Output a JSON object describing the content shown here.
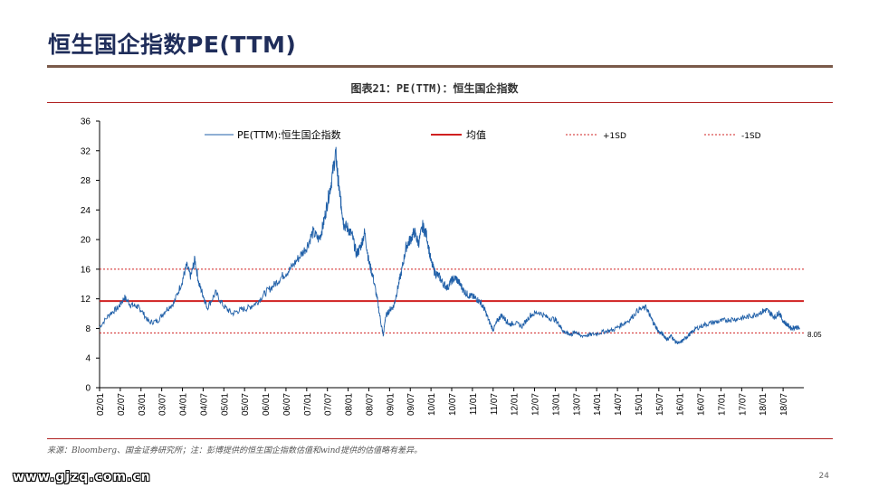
{
  "slide": {
    "title": "恒生国企指数PE(TTM)",
    "caption": "图表21：PE(TTM)：恒生国企指数",
    "source": "来源：Bloomberg、国金证券研究所；注：彭博提供的恒生国企指数估值和wind提供的估值略有差异。",
    "watermark": "www.gjzq.com.cn",
    "page_number": "24"
  },
  "chart_data": {
    "type": "line",
    "title": "图表21：PE(TTM)：恒生国企指数",
    "xlabel": "",
    "ylabel": "",
    "ylim": [
      0,
      36
    ],
    "y_ticks": [
      "0",
      "4",
      "8",
      "12",
      "16",
      "20",
      "24",
      "28",
      "32",
      "36"
    ],
    "x_ticks": [
      "02/01",
      "02/07",
      "03/01",
      "03/07",
      "04/01",
      "04/07",
      "05/01",
      "05/07",
      "06/01",
      "06/07",
      "07/01",
      "07/07",
      "08/01",
      "08/07",
      "09/01",
      "09/07",
      "10/01",
      "10/07",
      "11/01",
      "11/07",
      "12/01",
      "12/07",
      "13/01",
      "13/07",
      "14/01",
      "14/07",
      "15/01",
      "15/07",
      "16/01",
      "16/07",
      "17/01",
      "17/07",
      "18/01",
      "18/07"
    ],
    "grid": false,
    "legend_position": "top",
    "last_value_label": "8.05",
    "series": [
      {
        "name": "PE(TTM):恒生国企指数",
        "kind": "line",
        "color": "#1f5fa8",
        "x": [
          2002.0,
          2002.25,
          2002.45,
          2002.6,
          2002.75,
          2002.9,
          2003.0,
          2003.2,
          2003.4,
          2003.6,
          2003.8,
          2004.0,
          2004.1,
          2004.2,
          2004.3,
          2004.4,
          2004.5,
          2004.6,
          2004.8,
          2005.0,
          2005.2,
          2005.4,
          2005.6,
          2005.8,
          2006.0,
          2006.2,
          2006.4,
          2006.6,
          2006.8,
          2007.0,
          2007.15,
          2007.3,
          2007.4,
          2007.5,
          2007.6,
          2007.7,
          2007.75,
          2007.8,
          2007.85,
          2007.9,
          2008.0,
          2008.1,
          2008.2,
          2008.3,
          2008.4,
          2008.5,
          2008.6,
          2008.7,
          2008.8,
          2008.85,
          2008.9,
          2009.0,
          2009.1,
          2009.2,
          2009.3,
          2009.4,
          2009.5,
          2009.6,
          2009.7,
          2009.8,
          2009.9,
          2010.0,
          2010.1,
          2010.2,
          2010.3,
          2010.4,
          2010.5,
          2010.6,
          2010.7,
          2010.8,
          2010.9,
          2011.0,
          2011.1,
          2011.2,
          2011.3,
          2011.4,
          2011.5,
          2011.6,
          2011.7,
          2011.8,
          2011.9,
          2012.0,
          2012.2,
          2012.4,
          2012.6,
          2012.8,
          2013.0,
          2013.1,
          2013.2,
          2013.3,
          2013.4,
          2013.5,
          2013.6,
          2013.8,
          2014.0,
          2014.2,
          2014.4,
          2014.6,
          2014.8,
          2015.0,
          2015.2,
          2015.3,
          2015.4,
          2015.5,
          2015.6,
          2015.7,
          2015.8,
          2015.9,
          2016.0,
          2016.1,
          2016.2,
          2016.3,
          2016.4,
          2016.6,
          2016.8,
          2017.0,
          2017.2,
          2017.4,
          2017.6,
          2017.8,
          2018.0,
          2018.1,
          2018.2,
          2018.3,
          2018.4,
          2018.5,
          2018.6,
          2018.7,
          2018.8,
          2018.9
        ],
        "y": [
          8.2,
          10.0,
          10.8,
          12.2,
          11.2,
          11.0,
          10.5,
          8.8,
          9.0,
          10.5,
          11.5,
          14.5,
          16.5,
          15.0,
          17.3,
          14.0,
          12.5,
          10.8,
          12.8,
          11.0,
          10.0,
          10.5,
          10.8,
          11.5,
          12.8,
          13.8,
          15.0,
          16.0,
          17.5,
          19.0,
          21.0,
          20.0,
          22.0,
          25.0,
          28.0,
          31.8,
          28.5,
          26.0,
          24.0,
          22.0,
          21.5,
          20.5,
          18.0,
          19.0,
          21.0,
          17.0,
          15.0,
          12.0,
          8.5,
          7.0,
          9.5,
          10.5,
          11.0,
          13.5,
          16.0,
          19.0,
          20.0,
          21.0,
          19.5,
          21.8,
          20.5,
          17.0,
          15.5,
          15.0,
          14.0,
          13.5,
          14.5,
          14.8,
          14.0,
          13.0,
          12.5,
          12.3,
          12.0,
          11.5,
          10.5,
          9.0,
          7.8,
          9.0,
          9.8,
          9.2,
          8.5,
          8.8,
          8.3,
          9.8,
          10.2,
          9.5,
          9.2,
          8.5,
          7.6,
          7.3,
          7.2,
          7.6,
          7.0,
          7.1,
          7.3,
          7.6,
          7.8,
          8.5,
          9.2,
          10.5,
          10.8,
          9.5,
          8.5,
          7.5,
          7.2,
          6.5,
          7.0,
          6.2,
          6.0,
          6.5,
          7.0,
          7.5,
          8.0,
          8.5,
          8.8,
          9.0,
          9.2,
          9.3,
          9.5,
          9.8,
          10.3,
          10.5,
          10.0,
          9.5,
          10.2,
          9.0,
          8.5,
          8.0,
          8.2,
          8.05
        ]
      },
      {
        "name": "均值",
        "kind": "hline",
        "value": 11.7,
        "color": "#d02020"
      },
      {
        "name": "+1SD",
        "kind": "hline-dashed",
        "value": 16.0,
        "color": "#d02020"
      },
      {
        "name": "-1SD",
        "kind": "hline-dashed",
        "value": 7.4,
        "color": "#d02020"
      }
    ]
  }
}
